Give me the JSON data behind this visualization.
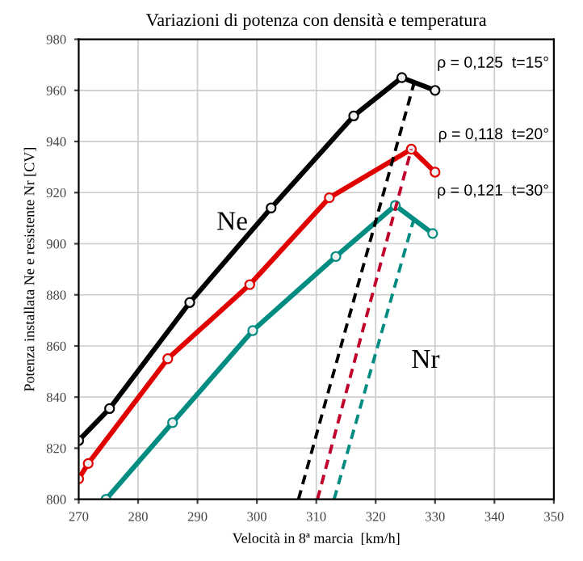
{
  "chart_data": {
    "type": "line",
    "title": "Variazioni di potenza con densità e temperatura",
    "xlabel": "Velocità in 8ª marcia  [km/h]",
    "ylabel": "Potenza installata Ne e resistente Nr [CV]",
    "xlim": [
      270,
      350
    ],
    "xticks": [
      270,
      280,
      290,
      300,
      310,
      320,
      330,
      340,
      350
    ],
    "ylim": [
      800,
      980
    ],
    "yticks": [
      800,
      820,
      840,
      860,
      880,
      900,
      920,
      940,
      960,
      980
    ],
    "grid": true,
    "legend": false,
    "series": [
      {
        "name": "ρ = 0,125  t=15°",
        "color": "#000000",
        "marker": "circle",
        "line_style": "solid",
        "x": [
          270,
          275.2,
          288.7,
          302.4,
          316.3,
          324.4,
          330
        ],
        "values": [
          823,
          835.5,
          877,
          914,
          950,
          965,
          960
        ]
      },
      {
        "name": "ρ = 0,118  t=20°",
        "color": "#e00000",
        "marker": "circle",
        "line_style": "solid",
        "x": [
          270,
          271.6,
          285,
          298.8,
          312.2,
          326,
          330
        ],
        "values": [
          808,
          814,
          855,
          884,
          918,
          937,
          928
        ]
      },
      {
        "name": "ρ = 0,121  t=30°",
        "color": "#008c80",
        "marker": "circle",
        "line_style": "solid",
        "x": [
          274.6,
          285.8,
          299.3,
          313.3,
          323.3,
          329.6
        ],
        "values": [
          800,
          830,
          866,
          895,
          915,
          904
        ]
      },
      {
        "color": "#000000",
        "marker": "none",
        "line_style": "dashed",
        "x": [
          307,
          326.6
        ],
        "values": [
          800,
          964
        ]
      },
      {
        "color": "#c0002a",
        "marker": "none",
        "line_style": "dashed",
        "x": [
          310.2,
          326
        ],
        "values": [
          800,
          937
        ]
      },
      {
        "color": "#008c80",
        "marker": "none",
        "line_style": "dashed",
        "x": [
          313,
          326.6
        ],
        "values": [
          800,
          911
        ]
      }
    ],
    "annotations": [
      "Ne",
      "Nr"
    ]
  }
}
